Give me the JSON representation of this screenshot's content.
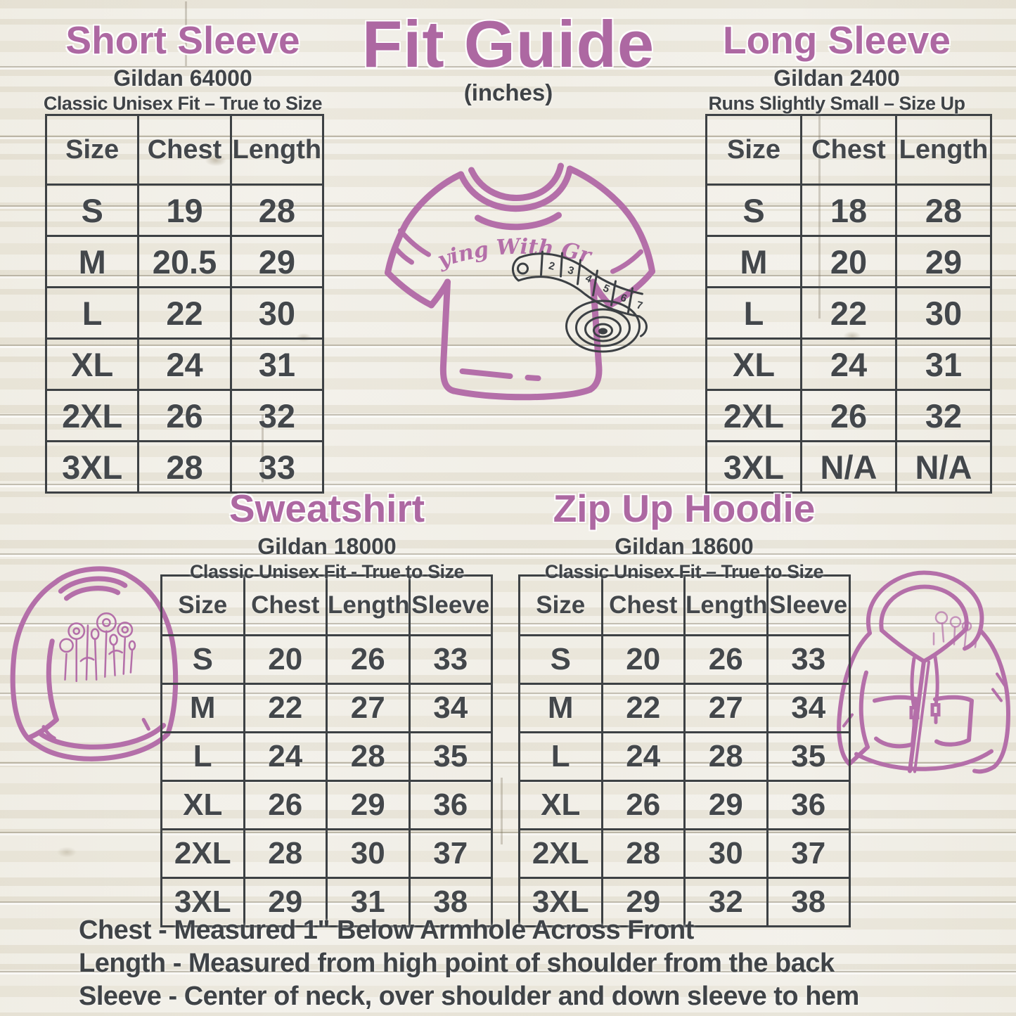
{
  "title": {
    "text": "Fit Guide",
    "subtitle": "(inches)"
  },
  "brand": "Graying With Grace",
  "sections": {
    "short_sleeve": {
      "title": "Short Sleeve",
      "model": "Gildan 64000",
      "fit": "Classic Unisex Fit – True to Size",
      "columns": [
        "Size",
        "Chest",
        "Length"
      ],
      "rows": [
        [
          "S",
          "19",
          "28"
        ],
        [
          "M",
          "20.5",
          "29"
        ],
        [
          "L",
          "22",
          "30"
        ],
        [
          "XL",
          "24",
          "31"
        ],
        [
          "2XL",
          "26",
          "32"
        ],
        [
          "3XL",
          "28",
          "33"
        ]
      ]
    },
    "long_sleeve": {
      "title": "Long Sleeve",
      "model": "Gildan 2400",
      "fit": "Runs Slightly Small – Size Up",
      "columns": [
        "Size",
        "Chest",
        "Length"
      ],
      "rows": [
        [
          "S",
          "18",
          "28"
        ],
        [
          "M",
          "20",
          "29"
        ],
        [
          "L",
          "22",
          "30"
        ],
        [
          "XL",
          "24",
          "31"
        ],
        [
          "2XL",
          "26",
          "32"
        ],
        [
          "3XL",
          "N/A",
          "N/A"
        ]
      ]
    },
    "sweatshirt": {
      "title": "Sweatshirt",
      "model": "Gildan 18000",
      "fit": "Classic Unisex Fit - True to Size",
      "columns": [
        "Size",
        "Chest",
        "Length",
        "Sleeve"
      ],
      "rows": [
        [
          "S",
          "20",
          "26",
          "33"
        ],
        [
          "M",
          "22",
          "27",
          "34"
        ],
        [
          "L",
          "24",
          "28",
          "35"
        ],
        [
          "XL",
          "26",
          "29",
          "36"
        ],
        [
          "2XL",
          "28",
          "30",
          "37"
        ],
        [
          "3XL",
          "29",
          "31",
          "38"
        ]
      ]
    },
    "zip_hoodie": {
      "title": "Zip Up Hoodie",
      "model": "Gildan 18600",
      "fit": "Classic Unisex Fit – True to Size",
      "columns": [
        "Size",
        "Chest",
        "Length",
        "Sleeve"
      ],
      "rows": [
        [
          "S",
          "20",
          "26",
          "33"
        ],
        [
          "M",
          "22",
          "27",
          "34"
        ],
        [
          "L",
          "24",
          "28",
          "35"
        ],
        [
          "XL",
          "26",
          "29",
          "36"
        ],
        [
          "2XL",
          "28",
          "30",
          "37"
        ],
        [
          "3XL",
          "29",
          "32",
          "38"
        ]
      ]
    }
  },
  "tape": {
    "numbers": [
      "2",
      "3",
      "4",
      "5",
      "6",
      "7"
    ]
  },
  "notes": [
    "Chest - Measured 1\" Below Armhole Across Front",
    "Length - Measured from high point of shoulder from the back",
    "Sleeve - Center of neck, over shoulder and down sleeve to hem"
  ],
  "illustrations": [
    "tshirt-illustration",
    "measuring-tape-illustration",
    "sweatshirt-illustration",
    "zip-hoodie-illustration"
  ],
  "colors": {
    "accent_purple": "#ad68a2",
    "illustration_purple": "#b46fa9",
    "text_dark": "#3f4347",
    "table_border": "#3d4144",
    "background_wood": "#f0eee7"
  }
}
